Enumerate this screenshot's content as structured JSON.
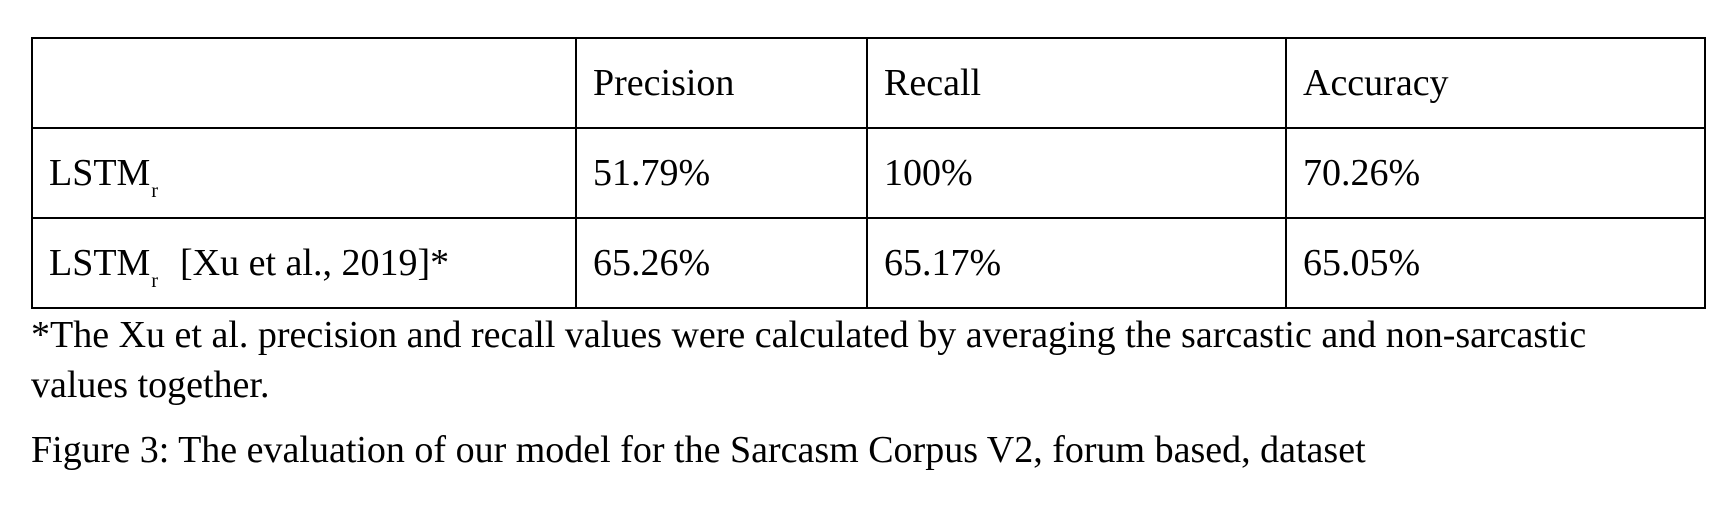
{
  "table": {
    "header": {
      "model": "",
      "precision": "Precision",
      "recall": "Recall",
      "accuracy": "Accuracy"
    },
    "rows": [
      {
        "model_base": "LSTM",
        "model_sub": "r",
        "model_citation": "",
        "precision": "51.79%",
        "recall": "100%",
        "accuracy": "70.26%"
      },
      {
        "model_base": "LSTM",
        "model_sub": "r",
        "model_citation": "[Xu et al., 2019]*",
        "precision": "65.26%",
        "recall": "65.17%",
        "accuracy": "65.05%"
      }
    ]
  },
  "footnote": "*The Xu et al. precision and recall values were calculated by averaging the sarcastic and non-sarcastic values together.",
  "caption": "Figure 3: The evaluation of our model for the Sarcasm Corpus V2, forum based, dataset"
}
